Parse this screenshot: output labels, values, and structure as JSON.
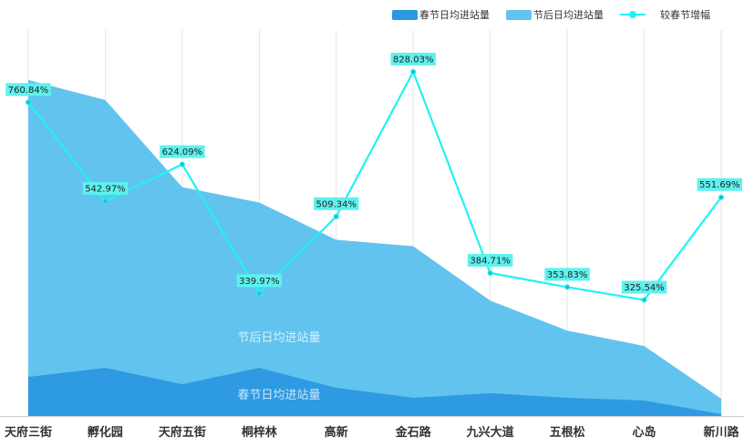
{
  "chart_data": {
    "type": "area",
    "title": "",
    "categories": [
      "天府三街",
      "孵化园",
      "天府五街",
      "桐梓林",
      "高新",
      "金石路",
      "九兴大道",
      "五根松",
      "心岛",
      "新川路"
    ],
    "series": [
      {
        "name": "春节日均进站量",
        "kind": "area",
        "color": "#2b98e0",
        "label": "春节日均进站量",
        "values": [
          43,
          53,
          35,
          53,
          31,
          20,
          25,
          20,
          17,
          2
        ]
      },
      {
        "name": "节后日均进站量",
        "kind": "area",
        "color": "#62c3ee",
        "label": "节后日均进站量",
        "values": [
          370,
          348,
          252,
          235,
          194,
          187,
          127,
          94,
          77,
          19
        ]
      },
      {
        "name": "较春节增幅",
        "kind": "line",
        "color": "#1ff2f4",
        "values": [
          760.84,
          542.97,
          624.09,
          339.97,
          509.34,
          828.03,
          384.71,
          353.83,
          325.54,
          551.69
        ],
        "labels": [
          "760.84%",
          "542.97%",
          "624.09%",
          "339.97%",
          "509.34%",
          "828.03%",
          "384.71%",
          "353.83%",
          "325.54%",
          "551.69%"
        ]
      }
    ],
    "xlabel": "",
    "ylabel": "",
    "ylim": [
      0,
      425
    ],
    "y2lim": [
      70,
      920
    ],
    "grid": "vertical",
    "legend": "top-right"
  }
}
